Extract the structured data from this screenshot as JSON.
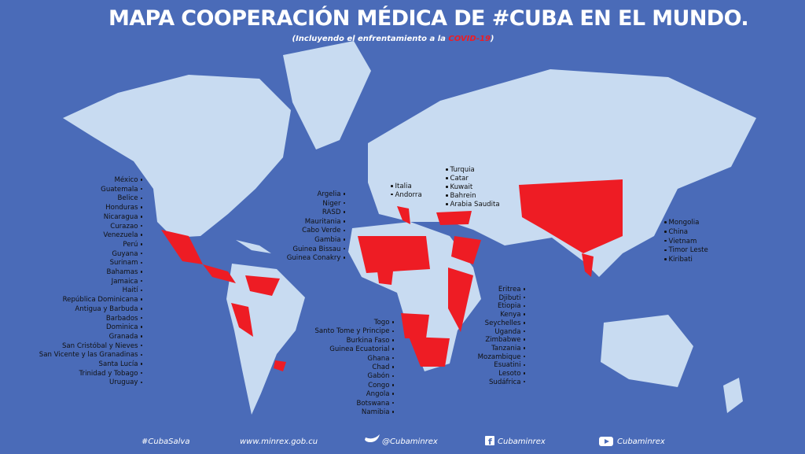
{
  "title": "MAPA COOPERACIÓN MÉDICA DE #CUBA EN EL MUNDO.",
  "subtitle": {
    "prefix": "(Incluyendo el enfrentamiento a la ",
    "highlight": "COVID-19",
    "suffix": ")"
  },
  "lists": {
    "americas": [
      "México",
      "Guatemala",
      "Belice",
      "Honduras",
      "Nicaragua",
      "Curazao",
      "Venezuela",
      "Perú",
      "Guyana",
      "Surinam",
      "Bahamas",
      "Jamaica",
      "Haití",
      "República Dominicana",
      "Antigua y Barbuda",
      "Barbados",
      "Dominica",
      "Granada",
      "San Cristóbal y Nieves",
      "San Vicente y las Granadinas",
      "Santa Lucía",
      "Trinidad y Tobago",
      "Uruguay"
    ],
    "west_africa": [
      "Argelia",
      "Niger",
      "RASD",
      "Mauritania",
      "Cabo Verde",
      "Gambia",
      "Guinea Bissau",
      "Guinea Conakry"
    ],
    "europe": [
      "Italia",
      "Andorra"
    ],
    "middle_east": [
      "Turquia",
      "Catar",
      "Kuwait",
      "Bahrein",
      "Arabia Saudita"
    ],
    "asia": [
      "Mongolia",
      "China",
      "Vietnam",
      "Timor Leste",
      "Kiribati"
    ],
    "central_africa": [
      "Togo",
      "Santo Tome y Principe",
      "Burkina Faso",
      "Guinea Ecuatorial",
      "Ghana",
      "Chad",
      "Gabón",
      "Congo",
      "Angola",
      "Botswana",
      "Namibia"
    ],
    "east_africa": [
      "Eritrea",
      "Djibuti",
      "Etiopia",
      "Kenya",
      "Seychelles",
      "Uganda",
      "Zimbabwe",
      "Tanzania",
      "Mozambique",
      "Esuatini",
      "Lesoto",
      "Sudáfrica"
    ]
  },
  "footer": {
    "hashtag": "#CubaSalva",
    "website": "www.minrex.gob.cu",
    "twitter": "@Cubaminrex",
    "facebook": "Cubaminrex",
    "youtube": "Cubaminrex"
  }
}
